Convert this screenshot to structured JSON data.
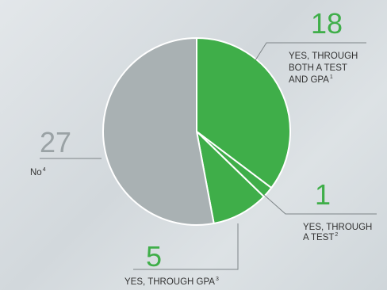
{
  "colors": {
    "green": "#3fae49",
    "gray": "#a9b1b3",
    "green_text": "#3fae49",
    "gray_text": "#9aa2a5",
    "leader": "#7d8487",
    "border": "#ffffff"
  },
  "chart_data": {
    "type": "pie",
    "title": "",
    "slices": [
      {
        "key": "both",
        "value": 18,
        "value_label": "18",
        "label_lines": [
          "YES, THROUGH",
          "BOTH A TEST",
          "AND GPA"
        ],
        "footnote": "1",
        "color": "#3fae49"
      },
      {
        "key": "test",
        "value": 1,
        "value_label": "1",
        "label_lines": [
          "YES, THROUGH",
          "A TEST"
        ],
        "footnote": "2",
        "color": "#3fae49"
      },
      {
        "key": "gpa",
        "value": 5,
        "value_label": "5",
        "label_lines": [
          "YES, THROUGH GPA"
        ],
        "footnote": "3",
        "color": "#3fae49"
      },
      {
        "key": "no",
        "value": 27,
        "value_label": "27",
        "label_lines": [
          "No"
        ],
        "footnote": "4",
        "color": "#a9b1b3"
      }
    ]
  }
}
